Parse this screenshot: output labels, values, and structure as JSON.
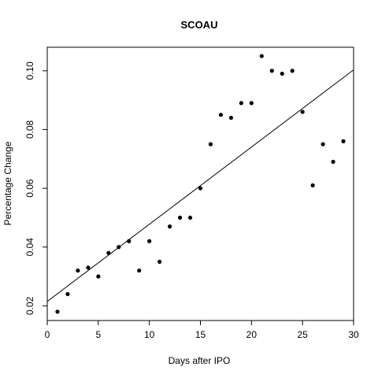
{
  "chart_data": {
    "type": "scatter",
    "title": "SCOAU",
    "xlabel": "Days after IPO",
    "ylabel": "Percentage Change",
    "xlim": [
      0,
      30
    ],
    "ylim": [
      0.015,
      0.108
    ],
    "x_ticks": [
      "0",
      "5",
      "10",
      "15",
      "20",
      "25",
      "30"
    ],
    "y_ticks": [
      "0.02",
      "0.04",
      "0.06",
      "0.08",
      "0.10"
    ],
    "grid": false,
    "legend": "none",
    "point_color": "#000000",
    "series": [
      {
        "points": [
          {
            "x": 1,
            "y": 0.018
          },
          {
            "x": 2,
            "y": 0.024
          },
          {
            "x": 3,
            "y": 0.032
          },
          {
            "x": 4,
            "y": 0.033
          },
          {
            "x": 5,
            "y": 0.03
          },
          {
            "x": 6,
            "y": 0.038
          },
          {
            "x": 7,
            "y": 0.04
          },
          {
            "x": 8,
            "y": 0.042
          },
          {
            "x": 9,
            "y": 0.032
          },
          {
            "x": 10,
            "y": 0.042
          },
          {
            "x": 11,
            "y": 0.035
          },
          {
            "x": 12,
            "y": 0.047
          },
          {
            "x": 13,
            "y": 0.05
          },
          {
            "x": 14,
            "y": 0.05
          },
          {
            "x": 15,
            "y": 0.06
          },
          {
            "x": 16,
            "y": 0.075
          },
          {
            "x": 17,
            "y": 0.085
          },
          {
            "x": 18,
            "y": 0.084
          },
          {
            "x": 19,
            "y": 0.089
          },
          {
            "x": 20,
            "y": 0.089
          },
          {
            "x": 21,
            "y": 0.105
          },
          {
            "x": 22,
            "y": 0.1
          },
          {
            "x": 23,
            "y": 0.099
          },
          {
            "x": 24,
            "y": 0.1
          },
          {
            "x": 25,
            "y": 0.086
          },
          {
            "x": 26,
            "y": 0.061
          },
          {
            "x": 27,
            "y": 0.075
          },
          {
            "x": 28,
            "y": 0.069
          },
          {
            "x": 29,
            "y": 0.076
          }
        ]
      }
    ],
    "trend_line": {
      "start": {
        "x": 0,
        "y": 0.0215
      },
      "end": {
        "x": 30,
        "y": 0.1003
      }
    }
  }
}
